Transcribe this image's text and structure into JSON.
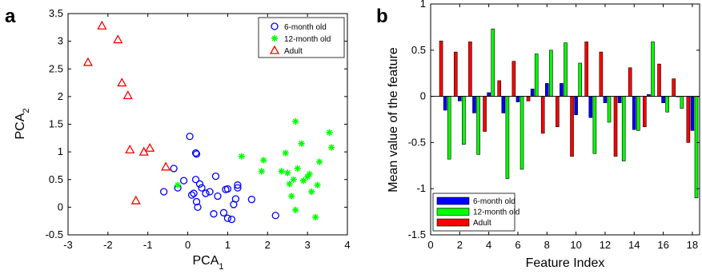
{
  "chart_data": [
    {
      "panel_label": "a",
      "type": "scatter",
      "xlabel": "PCA",
      "xlabel_sub": "1",
      "ylabel": "PCA",
      "ylabel_sub": "2",
      "xlim": [
        -3,
        4
      ],
      "ylim": [
        -0.5,
        3.5
      ],
      "xticks": [
        -3,
        -2,
        -1,
        0,
        1,
        2,
        3,
        4
      ],
      "yticks": [
        -0.5,
        0,
        0.5,
        1,
        1.5,
        2,
        2.5,
        3,
        3.5
      ],
      "grid": false,
      "legend": "top-right",
      "series": [
        {
          "name": "6-month old",
          "marker": "circle",
          "color": "#0000ff",
          "points": [
            [
              0.05,
              1.28
            ],
            [
              0.2,
              0.98
            ],
            [
              0.22,
              0.96
            ],
            [
              -0.35,
              0.7
            ],
            [
              -0.6,
              0.28
            ],
            [
              -0.25,
              0.35
            ],
            [
              -0.1,
              0.48
            ],
            [
              0.1,
              0.22
            ],
            [
              0.15,
              0.25
            ],
            [
              0.2,
              0.5
            ],
            [
              0.3,
              0.42
            ],
            [
              0.35,
              0.35
            ],
            [
              0.45,
              0.25
            ],
            [
              0.55,
              0.28
            ],
            [
              0.7,
              0.56
            ],
            [
              0.75,
              0.2
            ],
            [
              0.22,
              0.1
            ],
            [
              0.25,
              0.0
            ],
            [
              0.65,
              -0.12
            ],
            [
              0.9,
              -0.1
            ],
            [
              1.0,
              -0.2
            ],
            [
              1.1,
              -0.22
            ],
            [
              1.15,
              0.05
            ],
            [
              0.95,
              0.32
            ],
            [
              1.0,
              0.33
            ],
            [
              1.25,
              0.35
            ],
            [
              1.25,
              0.4
            ],
            [
              1.2,
              0.15
            ],
            [
              1.6,
              0.14
            ],
            [
              2.2,
              -0.15
            ]
          ]
        },
        {
          "name": "12-month old",
          "marker": "star",
          "color": "#00ff00",
          "points": [
            [
              1.35,
              0.92
            ],
            [
              1.9,
              0.85
            ],
            [
              1.85,
              0.65
            ],
            [
              2.45,
              0.98
            ],
            [
              2.35,
              0.65
            ],
            [
              2.5,
              0.62
            ],
            [
              2.55,
              0.42
            ],
            [
              2.6,
              0.2
            ],
            [
              2.65,
              0.5
            ],
            [
              2.7,
              1.55
            ],
            [
              2.75,
              0.7
            ],
            [
              2.7,
              -0.05
            ],
            [
              2.85,
              1.15
            ],
            [
              2.9,
              0.48
            ],
            [
              3.0,
              0.55
            ],
            [
              3.05,
              0.6
            ],
            [
              3.1,
              0.28
            ],
            [
              3.2,
              -0.18
            ],
            [
              3.25,
              0.4
            ],
            [
              3.3,
              0.82
            ],
            [
              3.55,
              1.35
            ],
            [
              3.6,
              1.08
            ],
            [
              -0.25,
              0.4
            ]
          ]
        },
        {
          "name": "Adult",
          "marker": "triangle",
          "color": "#ff0000",
          "points": [
            [
              -2.15,
              3.28
            ],
            [
              -1.75,
              3.03
            ],
            [
              -1.65,
              2.25
            ],
            [
              -1.5,
              2.02
            ],
            [
              -2.5,
              2.62
            ],
            [
              -1.45,
              1.04
            ],
            [
              -1.1,
              1.0
            ],
            [
              -0.95,
              1.07
            ],
            [
              -1.3,
              0.12
            ],
            [
              -0.55,
              0.73
            ]
          ]
        }
      ]
    },
    {
      "panel_label": "b",
      "type": "bar",
      "xlabel": "Feature Index",
      "ylabel": "Mean value of the feature",
      "xlim": [
        0,
        18.5
      ],
      "ylim": [
        -1.5,
        1
      ],
      "xticks": [
        0,
        2,
        4,
        6,
        8,
        10,
        12,
        14,
        16,
        18
      ],
      "yticks": [
        -1.5,
        -1,
        -0.5,
        0,
        0.5,
        1
      ],
      "ytick_labels": [
        "-1.5",
        "-1",
        "-0.5",
        "0",
        "0.5",
        "1"
      ],
      "categories": [
        1,
        2,
        3,
        4,
        5,
        6,
        7,
        8,
        9,
        10,
        11,
        12,
        13,
        14,
        15,
        16,
        17,
        18
      ],
      "grid": false,
      "legend": "bottom-left",
      "series": [
        {
          "name": "Adult",
          "color": "#ff0000",
          "values": [
            0.6,
            0.48,
            0.59,
            -0.38,
            0.17,
            0.38,
            -0.05,
            -0.4,
            -0.33,
            -0.65,
            0.59,
            0.48,
            -0.65,
            0.31,
            -0.33,
            0.35,
            0.19,
            -0.5
          ]
        },
        {
          "name": "6-month old",
          "color": "#0000ff",
          "values": [
            -0.15,
            -0.05,
            -0.18,
            0.04,
            -0.18,
            -0.06,
            0.08,
            0.14,
            0.14,
            -0.2,
            -0.23,
            -0.07,
            -0.07,
            -0.36,
            0.02,
            -0.07,
            0.0,
            -0.37
          ]
        },
        {
          "name": "12-month old",
          "color": "#00ff00",
          "values": [
            -0.68,
            -0.52,
            -0.63,
            0.73,
            -0.89,
            -0.79,
            0.46,
            0.5,
            0.58,
            0.36,
            -0.62,
            -0.28,
            -0.7,
            -0.37,
            0.59,
            -0.17,
            -0.13,
            -1.1
          ]
        }
      ],
      "legend_order": [
        "6-month old",
        "12-month old",
        "Adult"
      ]
    }
  ]
}
